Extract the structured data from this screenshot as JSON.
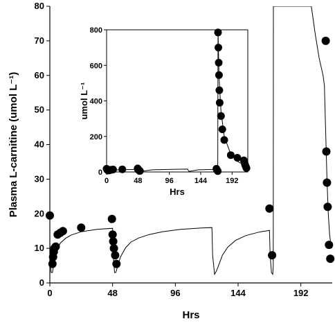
{
  "chart_data": [
    {
      "type": "scatter",
      "role": "main",
      "title": "",
      "xlabel": "Hrs",
      "ylabel": "Plasma L-carnitine (umol L⁻¹)",
      "xlim": [
        0,
        216
      ],
      "ylim": [
        0,
        80
      ],
      "xticks": [
        0,
        48,
        96,
        144,
        192
      ],
      "yticks": [
        0,
        10,
        20,
        30,
        40,
        50,
        60,
        70,
        80
      ],
      "grid": false,
      "legend": "none",
      "series": [
        {
          "kind": "points",
          "points": [
            [
              0,
              19.5
            ],
            [
              2,
              5.5
            ],
            [
              2.5,
              7.5
            ],
            [
              3,
              9
            ],
            [
              3.5,
              10
            ],
            [
              4.5,
              10.5
            ],
            [
              6,
              14
            ],
            [
              8,
              14.5
            ],
            [
              10,
              15
            ],
            [
              24,
              16
            ],
            [
              47.5,
              18.5
            ],
            [
              48,
              14
            ],
            [
              48.5,
              12
            ],
            [
              49,
              10
            ],
            [
              50,
              8
            ],
            [
              51,
              5.5
            ],
            [
              168,
              21.5
            ],
            [
              170,
              8
            ],
            [
              211,
              70
            ],
            [
              211.5,
              38
            ],
            [
              212,
              29
            ],
            [
              212.5,
              22
            ],
            [
              213.5,
              11
            ],
            [
              214.5,
              7
            ]
          ]
        },
        {
          "kind": "line",
          "points": [
            [
              0,
              8
            ],
            [
              1,
              3
            ],
            [
              2,
              3
            ],
            [
              3,
              5.5
            ],
            [
              4,
              7.5
            ],
            [
              6,
              10
            ],
            [
              8,
              11.5
            ],
            [
              12,
              12.9
            ],
            [
              16,
              13.8
            ],
            [
              24,
              14.8
            ],
            [
              36,
              15.5
            ],
            [
              48,
              15.8
            ],
            [
              48.5,
              8
            ],
            [
              49.5,
              3
            ],
            [
              50.5,
              3
            ],
            [
              52,
              5
            ],
            [
              54,
              7.5
            ],
            [
              58,
              10.2
            ],
            [
              62,
              11.8
            ],
            [
              68,
              13
            ],
            [
              76,
              14
            ],
            [
              86,
              14.8
            ],
            [
              100,
              15.5
            ],
            [
              116,
              15.9
            ],
            [
              124,
              16
            ],
            [
              124.5,
              8
            ],
            [
              126,
              2.5
            ],
            [
              127.5,
              3.5
            ],
            [
              129,
              5
            ],
            [
              132,
              8
            ],
            [
              136,
              10.3
            ],
            [
              142,
              12.3
            ],
            [
              150,
              13.7
            ],
            [
              160,
              14.7
            ],
            [
              168,
              15.2
            ],
            [
              168.5,
              8
            ],
            [
              169.5,
              3
            ],
            [
              170.5,
              2.5
            ],
            [
              170.9,
              5
            ],
            [
              171,
              80
            ],
            [
              200,
              80
            ],
            [
              203,
              72
            ],
            [
              206,
              65
            ],
            [
              209,
              60
            ],
            [
              210,
              57
            ],
            [
              212,
              30
            ],
            [
              213,
              20
            ],
            [
              214,
              14
            ],
            [
              215,
              11
            ],
            [
              216,
              10
            ]
          ]
        }
      ]
    },
    {
      "type": "scatter",
      "role": "inset",
      "title": "",
      "xlabel": "Hrs",
      "ylabel": "umol L⁻¹",
      "xlim": [
        0,
        216
      ],
      "ylim": [
        0,
        800
      ],
      "xticks": [
        0,
        48,
        96,
        144,
        192
      ],
      "yticks": [
        0,
        200,
        400,
        600,
        800
      ],
      "grid": false,
      "legend": "none",
      "series": [
        {
          "kind": "points",
          "points": [
            [
              0,
              18
            ],
            [
              2,
              8
            ],
            [
              3,
              10
            ],
            [
              4,
              9
            ],
            [
              6,
              12
            ],
            [
              8,
              13
            ],
            [
              10,
              14
            ],
            [
              24,
              15
            ],
            [
              47.5,
              20
            ],
            [
              48,
              14
            ],
            [
              49,
              10
            ],
            [
              50,
              8
            ],
            [
              51,
              6
            ],
            [
              168,
              18
            ],
            [
              169,
              10
            ],
            [
              170,
              5
            ],
            [
              170.5,
              785
            ],
            [
              171,
              700
            ],
            [
              171.5,
              615
            ],
            [
              172,
              545
            ],
            [
              172.5,
              460
            ],
            [
              173,
              390
            ],
            [
              175,
              315
            ],
            [
              177,
              240
            ],
            [
              180,
              180
            ],
            [
              190,
              95
            ],
            [
              200,
              80
            ],
            [
              210,
              65
            ],
            [
              211,
              52
            ],
            [
              212,
              40
            ],
            [
              213,
              30
            ],
            [
              214,
              22
            ]
          ]
        },
        {
          "kind": "line",
          "points": [
            [
              0,
              5
            ],
            [
              6,
              10
            ],
            [
              24,
              13
            ],
            [
              48,
              15
            ],
            [
              49,
              5
            ],
            [
              52,
              3
            ],
            [
              70,
              12
            ],
            [
              100,
              15
            ],
            [
              124,
              16
            ],
            [
              126,
              3
            ],
            [
              140,
              12
            ],
            [
              168,
              15
            ],
            [
              170,
              3
            ],
            [
              170.5,
              800
            ],
            [
              172,
              540
            ],
            [
              175,
              340
            ],
            [
              180,
              200
            ],
            [
              190,
              100
            ],
            [
              200,
              60
            ],
            [
              210,
              40
            ],
            [
              216,
              30
            ]
          ]
        }
      ]
    }
  ]
}
